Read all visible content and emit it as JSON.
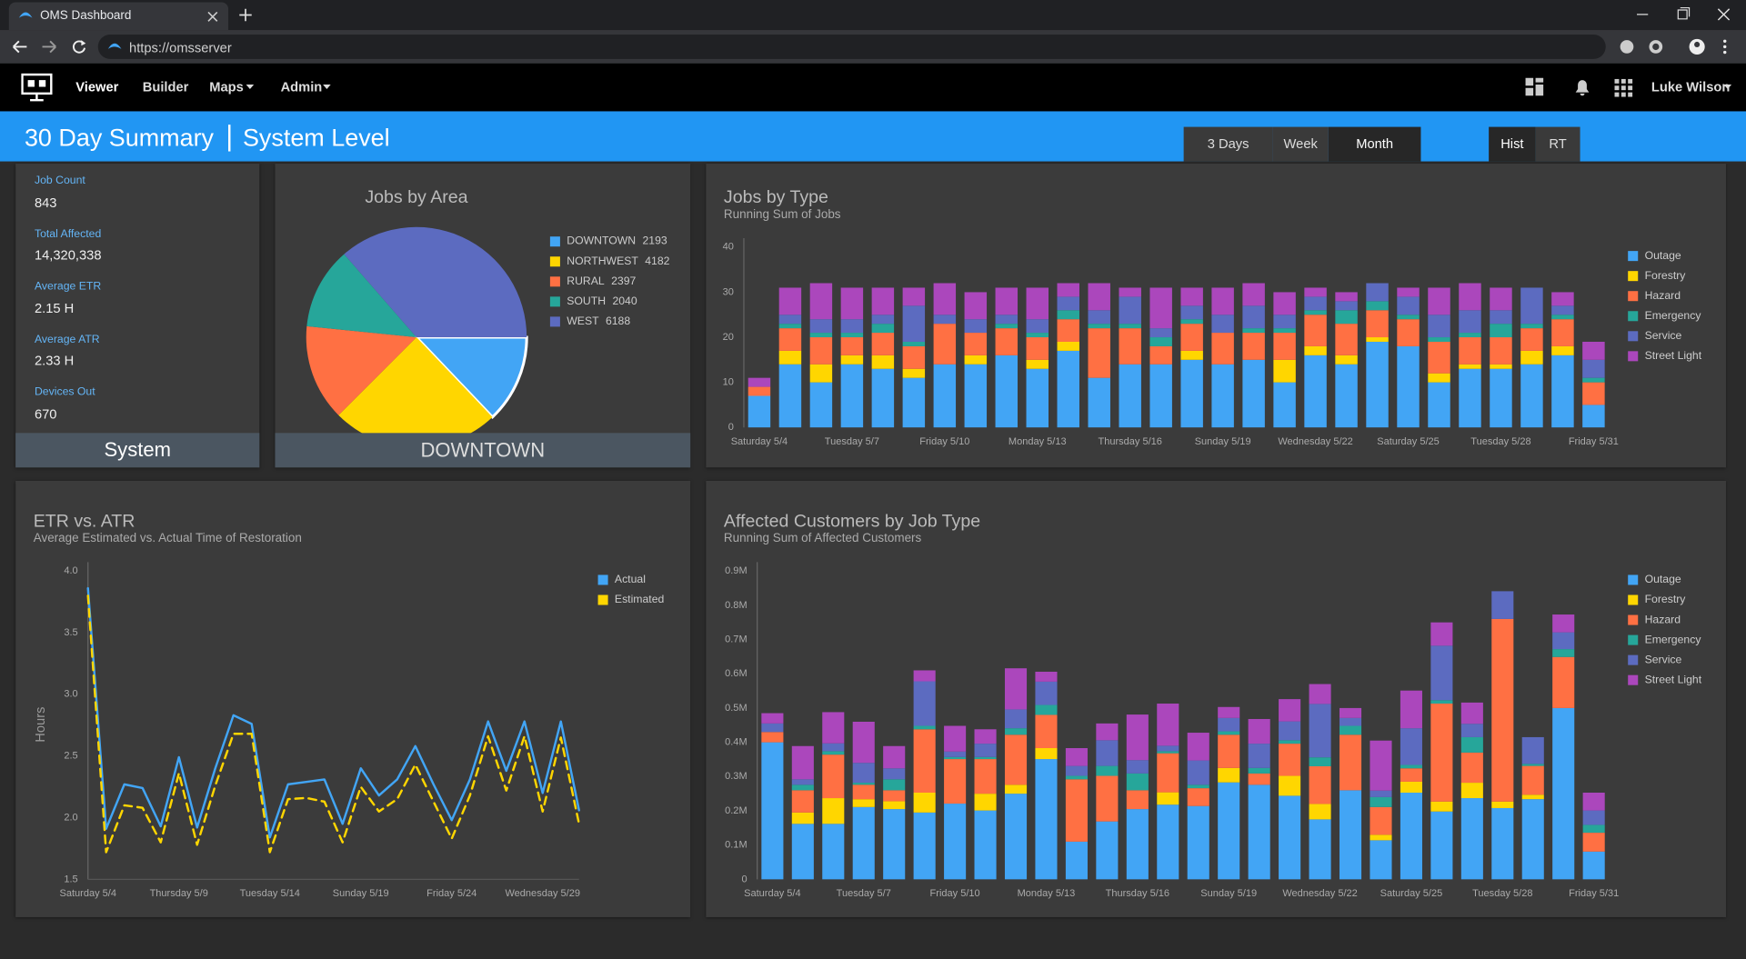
{
  "browser": {
    "tab_title": "OMS Dashboard",
    "url": "https://omsserver"
  },
  "nav": {
    "items": [
      "Viewer",
      "Builder",
      "Maps",
      "Admin"
    ],
    "user": "Luke Wilson"
  },
  "header": {
    "title": "30 Day Summary",
    "subtitle": "System Level",
    "range_buttons": [
      "3 Days",
      "Week",
      "Month"
    ],
    "mode_buttons": [
      "Hist",
      "RT"
    ]
  },
  "stats": {
    "items": [
      {
        "label": "Job Count",
        "value": "843"
      },
      {
        "label": "Total Affected",
        "value": "14,320,338"
      },
      {
        "label": "Average ETR",
        "value": "2.15 H"
      },
      {
        "label": "Average ATR",
        "value": "2.33 H"
      },
      {
        "label": "Devices Out",
        "value": "670"
      }
    ],
    "footer": "System"
  },
  "chart_data": [
    {
      "type": "pie",
      "title": "Jobs by Area",
      "categories": [
        "DOWNTOWN",
        "NORTHWEST",
        "RURAL",
        "SOUTH",
        "WEST"
      ],
      "values": [
        2193,
        4182,
        2397,
        2040,
        6188
      ],
      "colors": [
        "#42a5f5",
        "#ffd600",
        "#ff7043",
        "#26a69a",
        "#5c6bc0"
      ],
      "footer": "DOWNTOWN",
      "legend": "right"
    },
    {
      "type": "bar",
      "stacked": true,
      "title": "Jobs by Type",
      "subtitle": "Running Sum of Jobs",
      "categories": [
        "Saturday 5/4",
        null,
        null,
        "Tuesday 5/7",
        null,
        null,
        "Friday 5/10",
        null,
        null,
        "Monday 5/13",
        null,
        null,
        "Thursday 5/16",
        null,
        null,
        "Sunday 5/19",
        null,
        null,
        "Wednesday 5/22",
        null,
        null,
        "Saturday 5/25",
        null,
        null,
        "Tuesday 5/28",
        null,
        null,
        "Friday 5/31"
      ],
      "series": [
        {
          "name": "Outage",
          "color": "#42a5f5",
          "values": [
            7,
            14,
            10,
            14,
            13,
            11,
            14,
            14,
            16,
            13,
            17,
            11,
            14,
            14,
            15,
            14,
            15,
            10,
            16,
            14,
            19,
            18,
            10,
            13,
            13,
            14,
            16,
            5
          ]
        },
        {
          "name": "Forestry",
          "color": "#ffd600",
          "values": [
            0,
            3,
            4,
            2,
            3,
            2,
            0,
            2,
            0,
            2,
            2,
            0,
            0,
            0,
            2,
            0,
            0,
            5,
            2,
            2,
            1,
            0,
            2,
            1,
            1,
            3,
            2,
            0
          ]
        },
        {
          "name": "Hazard",
          "color": "#ff7043",
          "values": [
            2,
            5,
            6,
            4,
            5,
            5,
            9,
            5,
            6,
            5,
            5,
            11,
            8,
            4,
            6,
            7,
            6,
            6,
            7,
            7,
            6,
            6,
            7,
            6,
            6,
            5,
            6,
            5
          ]
        },
        {
          "name": "Emergency",
          "color": "#26a69a",
          "values": [
            0,
            1,
            1,
            1,
            2,
            1,
            0,
            0,
            1,
            1,
            2,
            1,
            1,
            2,
            1,
            0,
            1,
            1,
            1,
            3,
            2,
            1,
            1,
            1,
            3,
            1,
            1,
            1
          ]
        },
        {
          "name": "Service",
          "color": "#5c6bc0",
          "values": [
            0,
            2,
            3,
            3,
            2,
            8,
            2,
            3,
            2,
            3,
            3,
            3,
            6,
            2,
            3,
            4,
            5,
            3,
            3,
            2,
            4,
            4,
            5,
            5,
            3,
            8,
            2,
            4
          ]
        },
        {
          "name": "Street Light",
          "color": "#ab47bc",
          "values": [
            2,
            6,
            8,
            7,
            6,
            4,
            7,
            6,
            6,
            7,
            3,
            6,
            2,
            9,
            4,
            6,
            5,
            5,
            2,
            2,
            0,
            2,
            6,
            6,
            5,
            0,
            3,
            4
          ]
        }
      ],
      "ylim": [
        0,
        40
      ],
      "yticks": [
        0,
        10,
        20,
        30,
        40
      ],
      "grid": false,
      "legend": "right"
    },
    {
      "type": "line",
      "title": "ETR vs. ATR",
      "subtitle": "Average Estimated vs. Actual Time of Restoration",
      "y_label": "Hours",
      "categories": [
        "Saturday 5/4",
        null,
        null,
        null,
        null,
        "Thursday 5/9",
        null,
        null,
        null,
        null,
        "Tuesday 5/14",
        null,
        null,
        null,
        null,
        "Sunday 5/19",
        null,
        null,
        null,
        null,
        "Friday 5/24",
        null,
        null,
        null,
        null,
        "Wednesday 5/29",
        null,
        null
      ],
      "series": [
        {
          "name": "Actual",
          "color": "#42a5f5",
          "dashed": false,
          "values": [
            3.86,
            1.91,
            2.27,
            2.24,
            1.93,
            2.49,
            1.92,
            2.4,
            2.83,
            2.76,
            1.84,
            2.27,
            2.29,
            2.31,
            1.95,
            2.4,
            2.18,
            2.31,
            2.58,
            2.27,
            1.98,
            2.31,
            2.78,
            2.38,
            2.78,
            2.2,
            2.78,
            2.06
          ]
        },
        {
          "name": "Estimated",
          "color": "#ffd600",
          "dashed": true,
          "values": [
            3.8,
            1.72,
            2.1,
            2.08,
            1.8,
            2.36,
            1.78,
            2.26,
            2.68,
            2.68,
            1.72,
            2.15,
            2.16,
            2.13,
            1.8,
            2.25,
            2.05,
            2.15,
            2.43,
            2.13,
            1.83,
            2.18,
            2.66,
            2.22,
            2.66,
            2.05,
            2.65,
            1.95
          ]
        }
      ],
      "ylim": [
        1.5,
        4
      ],
      "yticks": [
        1.5,
        {
          "value": 2,
          "label": "2.0"
        },
        2.5,
        {
          "value": 3,
          "label": "3.0"
        },
        3.5,
        {
          "value": 4,
          "label": "4.0"
        }
      ],
      "grid": false,
      "legend": "right"
    },
    {
      "type": "bar",
      "stacked": true,
      "title": "Affected Customers by Job Type",
      "subtitle": "Running Sum of Affected Customers",
      "categories": [
        "Saturday 5/4",
        null,
        null,
        "Tuesday 5/7",
        null,
        null,
        "Friday 5/10",
        null,
        null,
        "Monday 5/13",
        null,
        null,
        "Thursday 5/16",
        null,
        null,
        "Sunday 5/19",
        null,
        null,
        "Wednesday 5/22",
        null,
        null,
        "Saturday 5/25",
        null,
        null,
        "Tuesday 5/28",
        null,
        null,
        "Friday 5/31"
      ],
      "series": [
        {
          "name": "Outage",
          "color": "#42a5f5",
          "values": [
            400000,
            162000,
            162000,
            211000,
            205000,
            195000,
            221000,
            201000,
            250000,
            351000,
            110000,
            169000,
            205000,
            218000,
            214000,
            283000,
            276000,
            244000,
            175000,
            260000,
            114000,
            253000,
            198000,
            237000,
            208000,
            234000,
            500000,
            81000
          ]
        },
        {
          "name": "Forestry",
          "color": "#ffd600",
          "values": [
            0,
            33000,
            75000,
            23000,
            23000,
            58000,
            0,
            49000,
            26000,
            32000,
            0,
            0,
            0,
            36000,
            0,
            42000,
            0,
            58000,
            45000,
            0,
            16000,
            32000,
            29000,
            45000,
            19000,
            13000,
            0,
            0
          ]
        },
        {
          "name": "Hazard",
          "color": "#ff7043",
          "values": [
            30000,
            65000,
            127000,
            42000,
            32000,
            185000,
            130000,
            101000,
            146000,
            97000,
            182000,
            133000,
            55000,
            114000,
            52000,
            97000,
            33000,
            94000,
            110000,
            162000,
            81000,
            39000,
            286000,
            88000,
            533000,
            84000,
            149000,
            55000
          ]
        },
        {
          "name": "Emergency",
          "color": "#26a69a",
          "values": [
            0,
            16000,
            10000,
            6000,
            32000,
            10000,
            6000,
            6000,
            19000,
            29000,
            10000,
            29000,
            49000,
            6000,
            10000,
            10000,
            16000,
            10000,
            26000,
            26000,
            29000,
            10000,
            10000,
            45000,
            0,
            6000,
            23000,
            23000
          ]
        },
        {
          "name": "Service",
          "color": "#5c6bc0",
          "values": [
            25000,
            16000,
            23000,
            58000,
            32000,
            130000,
            16000,
            39000,
            55000,
            68000,
            29000,
            75000,
            39000,
            16000,
            71000,
            39000,
            71000,
            55000,
            156000,
            23000,
            19000,
            107000,
            159000,
            39000,
            81000,
            78000,
            49000,
            42000
          ]
        },
        {
          "name": "Street Light",
          "color": "#ab47bc",
          "values": [
            30000,
            97000,
            91000,
            120000,
            65000,
            32000,
            75000,
            42000,
            120000,
            29000,
            52000,
            49000,
            133000,
            123000,
            81000,
            32000,
            72000,
            65000,
            58000,
            29000,
            146000,
            110000,
            68000,
            62000,
            0,
            0,
            52000,
            52000
          ]
        }
      ],
      "ylim": [
        0,
        900000
      ],
      "yticks": [
        0,
        {
          "value": 100000,
          "label": "0.1M"
        },
        {
          "value": 200000,
          "label": "0.2M"
        },
        {
          "value": 300000,
          "label": "0.3M"
        },
        {
          "value": 400000,
          "label": "0.4M"
        },
        {
          "value": 500000,
          "label": "0.5M"
        },
        {
          "value": 600000,
          "label": "0.6M"
        },
        {
          "value": 700000,
          "label": "0.7M"
        },
        {
          "value": 800000,
          "label": "0.8M"
        },
        {
          "value": 900000,
          "label": "0.9M"
        }
      ],
      "grid": false,
      "legend": "right"
    }
  ]
}
